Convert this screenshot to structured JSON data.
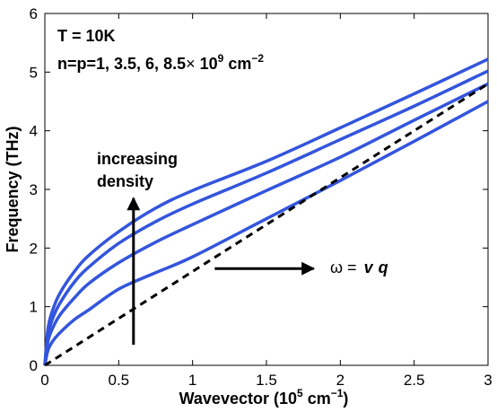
{
  "chart_data": {
    "type": "line",
    "xlabel": {
      "main": "Wavevector (10",
      "sup": "5",
      "mid": " cm",
      "sup2": "−1",
      "end": ")"
    },
    "ylabel": "Frequency (THz)",
    "xlim": [
      0,
      3
    ],
    "ylim": [
      0,
      6
    ],
    "xticks": [
      "0",
      "0.5",
      "1",
      "1.5",
      "2",
      "2.5",
      "3"
    ],
    "yticks": [
      "0",
      "1",
      "2",
      "3",
      "4",
      "5",
      "6"
    ],
    "grid": false,
    "series": [
      {
        "style": "solid",
        "color": "#3355dd",
        "x": [
          0,
          0.02,
          0.05,
          0.1,
          0.2,
          0.3,
          0.5,
          0.75,
          1.0,
          1.5,
          2.0,
          2.5,
          3.0
        ],
        "y": [
          0,
          0.25,
          0.4,
          0.55,
          0.78,
          0.95,
          1.3,
          1.58,
          1.85,
          2.5,
          3.15,
          3.82,
          4.5
        ]
      },
      {
        "style": "solid",
        "color": "#3355dd",
        "x": [
          0,
          0.02,
          0.05,
          0.1,
          0.2,
          0.3,
          0.5,
          0.75,
          1.0,
          1.5,
          2.0,
          2.5,
          3.0
        ],
        "y": [
          0,
          0.4,
          0.62,
          0.85,
          1.15,
          1.4,
          1.75,
          2.1,
          2.4,
          2.98,
          3.55,
          4.18,
          4.8
        ]
      },
      {
        "style": "solid",
        "color": "#3355dd",
        "x": [
          0,
          0.02,
          0.05,
          0.1,
          0.2,
          0.3,
          0.5,
          0.75,
          1.0,
          1.5,
          2.0,
          2.5,
          3.0
        ],
        "y": [
          0,
          0.5,
          0.78,
          1.05,
          1.42,
          1.68,
          2.08,
          2.45,
          2.75,
          3.28,
          3.85,
          4.42,
          5.02
        ]
      },
      {
        "style": "solid",
        "color": "#3355dd",
        "x": [
          0,
          0.02,
          0.05,
          0.1,
          0.2,
          0.3,
          0.5,
          0.75,
          1.0,
          1.5,
          2.0,
          2.5,
          3.0
        ],
        "y": [
          0,
          0.6,
          0.92,
          1.22,
          1.6,
          1.88,
          2.28,
          2.68,
          2.98,
          3.48,
          4.05,
          4.63,
          5.22
        ]
      },
      {
        "style": "dashed",
        "color": "#000000",
        "x": [
          0,
          3.0
        ],
        "y": [
          0,
          4.8
        ]
      }
    ],
    "annotations": {
      "temp": "T = 10K",
      "density_main": "n=p=1, 3.5, 6, 8.5",
      "density_times": "×",
      "density_ten": " 10",
      "density_exp": "9",
      "density_unit": " cm",
      "density_unit_exp": "−2",
      "increasing_line1": "increasing",
      "increasing_line2": "density",
      "omega": "ω =",
      "v": "v",
      "q": "q"
    },
    "arrows": {
      "vertical": {
        "x": 0.6,
        "y_from": 0.35,
        "y_to": 2.85
      },
      "horizontal": {
        "y": 1.65,
        "x_from": 1.15,
        "x_to": 1.82
      }
    }
  }
}
